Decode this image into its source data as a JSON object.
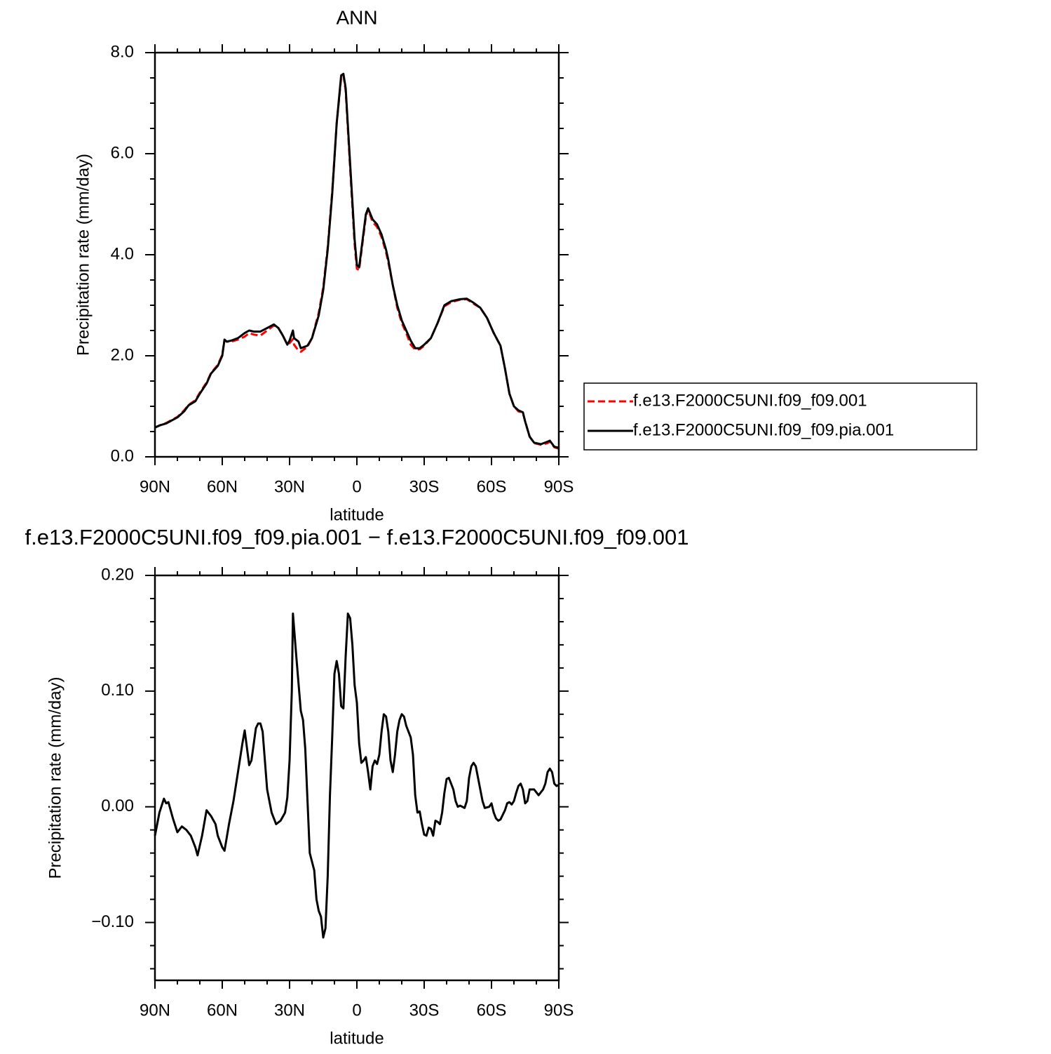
{
  "chart_data": [
    {
      "type": "line",
      "title": "ANN",
      "xlabel": "latitude",
      "ylabel": "Precipitation rate (mm/day)",
      "x": [
        90,
        88,
        85,
        80,
        77,
        75,
        72,
        70,
        67,
        65,
        62,
        60,
        59,
        58,
        56,
        53,
        50,
        48,
        46,
        43,
        40,
        37,
        35,
        33,
        31,
        30,
        28.5,
        28,
        26,
        25,
        22,
        20,
        17,
        15,
        13,
        11,
        9,
        7,
        6,
        5,
        3,
        1,
        0,
        -1,
        -2,
        -4,
        -5,
        -7,
        -9,
        -11,
        -13,
        -14,
        -16,
        -18,
        -20,
        -22,
        -24,
        -26,
        -28,
        -30,
        -33,
        -36,
        -39,
        -42,
        -46,
        -49,
        -52,
        -55,
        -58,
        -61,
        -64,
        -66,
        -68,
        -70,
        -72,
        -74,
        -75,
        -77,
        -79,
        -82,
        -85,
        -86,
        -88,
        -90
      ],
      "series": [
        {
          "name": "f.e13.F2000C5UNI.f09_f09.001",
          "color": "#ff0000",
          "dash": true,
          "values": [
            0.58,
            0.62,
            0.67,
            0.79,
            0.92,
            1.03,
            1.12,
            1.27,
            1.47,
            1.66,
            1.82,
            2.02,
            2.32,
            2.28,
            2.28,
            2.32,
            2.38,
            2.45,
            2.42,
            2.4,
            2.5,
            2.6,
            2.55,
            2.4,
            2.22,
            2.25,
            2.33,
            2.22,
            2.1,
            2.08,
            2.18,
            2.35,
            2.85,
            3.35,
            4.15,
            5.25,
            6.6,
            7.5,
            7.55,
            7.25,
            5.7,
            4.2,
            3.72,
            3.7,
            4.05,
            4.75,
            4.9,
            4.65,
            4.55,
            4.35,
            4.05,
            3.85,
            3.4,
            2.95,
            2.65,
            2.45,
            2.22,
            2.12,
            2.13,
            2.2,
            2.35,
            2.65,
            2.98,
            3.06,
            3.11,
            3.12,
            3.03,
            2.95,
            2.75,
            2.45,
            2.2,
            1.75,
            1.25,
            1.0,
            0.9,
            0.87,
            0.7,
            0.4,
            0.27,
            0.24,
            0.27,
            0.3,
            0.19,
            0.16
          ]
        },
        {
          "name": "f.e13.F2000C5UNI.f09_f09.pia.001",
          "color": "#000000",
          "dash": false,
          "values": [
            0.58,
            0.62,
            0.66,
            0.78,
            0.9,
            1.02,
            1.1,
            1.25,
            1.45,
            1.65,
            1.8,
            2.0,
            2.32,
            2.28,
            2.3,
            2.35,
            2.45,
            2.5,
            2.48,
            2.48,
            2.55,
            2.62,
            2.55,
            2.4,
            2.22,
            2.3,
            2.5,
            2.35,
            2.28,
            2.15,
            2.2,
            2.35,
            2.8,
            3.3,
            4.1,
            5.2,
            6.6,
            7.55,
            7.58,
            7.3,
            5.8,
            4.3,
            3.8,
            3.75,
            4.1,
            4.8,
            4.92,
            4.7,
            4.6,
            4.4,
            4.1,
            3.9,
            3.4,
            3.0,
            2.7,
            2.5,
            2.3,
            2.15,
            2.15,
            2.22,
            2.35,
            2.65,
            3.0,
            3.08,
            3.12,
            3.13,
            3.05,
            2.95,
            2.75,
            2.45,
            2.2,
            1.75,
            1.25,
            1.0,
            0.92,
            0.88,
            0.7,
            0.4,
            0.28,
            0.25,
            0.3,
            0.32,
            0.2,
            0.18
          ]
        }
      ],
      "xlim": [
        90,
        -90
      ],
      "xticks": [
        {
          "value": 90,
          "label": "90N"
        },
        {
          "value": 60,
          "label": "60N"
        },
        {
          "value": 30,
          "label": "30N"
        },
        0,
        {
          "value": -30,
          "label": "30S"
        },
        {
          "value": -60,
          "label": "60S"
        },
        {
          "value": -90,
          "label": "90S"
        }
      ],
      "ylim": [
        0,
        8
      ],
      "yticks": [
        {
          "value": 0,
          "label": "0.0"
        },
        {
          "value": 2,
          "label": "2.0"
        },
        {
          "value": 4,
          "label": "4.0"
        },
        {
          "value": 6,
          "label": "6.0"
        },
        {
          "value": 8,
          "label": "8.0"
        }
      ],
      "legend": "right"
    },
    {
      "type": "line",
      "title": "f.e13.F2000C5UNI.f09_f09.pia.001 − f.e13.F2000C5UNI.f09_f09.001",
      "xlabel": "latitude",
      "ylabel": "Precipitation rate (mm/day)",
      "x": [
        90,
        88,
        86,
        85,
        84,
        82,
        80,
        78,
        76,
        74,
        72,
        71,
        69,
        67,
        65,
        63,
        62,
        60,
        59,
        57,
        55,
        53,
        51,
        50,
        48,
        47,
        45,
        44,
        43,
        42,
        40,
        38,
        36,
        34,
        32,
        31,
        30,
        29,
        28.5,
        27,
        25,
        24,
        23,
        21,
        19,
        18,
        17,
        16,
        15,
        14,
        13,
        12,
        11,
        10,
        9,
        8,
        7,
        6,
        5,
        4,
        3,
        2,
        1,
        0,
        -1,
        -2,
        -3,
        -4,
        -5,
        -6,
        -7,
        -8,
        -9,
        -10,
        -11,
        -12,
        -13,
        -14,
        -15,
        -16,
        -17,
        -18,
        -19,
        -20,
        -21,
        -22,
        -24,
        -25,
        -26,
        -27,
        -28,
        -29,
        -30,
        -31,
        -32,
        -33,
        -34,
        -35,
        -36,
        -37,
        -38,
        -39,
        -40,
        -41,
        -43,
        -44,
        -45,
        -46,
        -48,
        -49,
        -50,
        -51,
        -52,
        -53,
        -55,
        -56,
        -57,
        -59,
        -60,
        -61,
        -62,
        -63,
        -64,
        -66,
        -67,
        -68,
        -69,
        -70,
        -71,
        -72,
        -73,
        -74,
        -75,
        -76,
        -77,
        -79,
        -81,
        -83,
        -84,
        -85,
        -86,
        -87,
        -88,
        -89,
        -90
      ],
      "series": [
        {
          "name": "f.e13.F2000C5UNI.f09_f09.pia.001 − f.e13.F2000C5UNI.f09_f09.001",
          "color": "#000000",
          "dash": false,
          "values": [
            -0.025,
            -0.005,
            0.007,
            0.003,
            0.004,
            -0.01,
            -0.022,
            -0.017,
            -0.02,
            -0.025,
            -0.035,
            -0.042,
            -0.025,
            -0.003,
            -0.008,
            -0.015,
            -0.025,
            -0.035,
            -0.038,
            -0.015,
            0.005,
            0.03,
            0.055,
            0.066,
            0.036,
            0.04,
            0.068,
            0.072,
            0.072,
            0.065,
            0.015,
            -0.005,
            -0.015,
            -0.012,
            -0.005,
            0.008,
            0.04,
            0.1,
            0.167,
            0.13,
            0.083,
            0.075,
            0.05,
            -0.04,
            -0.055,
            -0.08,
            -0.09,
            -0.095,
            -0.113,
            -0.105,
            -0.06,
            0.01,
            0.06,
            0.115,
            0.126,
            0.115,
            0.087,
            0.085,
            0.13,
            0.167,
            0.163,
            0.14,
            0.105,
            0.09,
            0.055,
            0.038,
            0.04,
            0.043,
            0.03,
            0.015,
            0.035,
            0.04,
            0.037,
            0.045,
            0.065,
            0.08,
            0.078,
            0.065,
            0.04,
            0.03,
            0.045,
            0.065,
            0.075,
            0.08,
            0.078,
            0.07,
            0.06,
            0.045,
            0.01,
            -0.005,
            -0.004,
            -0.015,
            -0.024,
            -0.025,
            -0.018,
            -0.019,
            -0.025,
            -0.012,
            -0.013,
            -0.015,
            -0.005,
            0.012,
            0.024,
            0.025,
            0.015,
            0.005,
            0.0,
            0.001,
            -0.001,
            0.005,
            0.025,
            0.035,
            0.038,
            0.035,
            0.015,
            0.005,
            -0.001,
            0.0,
            0.003,
            -0.005,
            -0.01,
            -0.012,
            -0.011,
            -0.003,
            0.003,
            0.004,
            0.002,
            0.005,
            0.012,
            0.018,
            0.02,
            0.015,
            0.003,
            0.005,
            0.015,
            0.015,
            0.01,
            0.015,
            0.02,
            0.03,
            0.033,
            0.03,
            0.02,
            0.018,
            0.019
          ]
        }
      ],
      "xlim": [
        90,
        -90
      ],
      "xticks": [
        {
          "value": 90,
          "label": "90N"
        },
        {
          "value": 60,
          "label": "60N"
        },
        {
          "value": 30,
          "label": "30N"
        },
        0,
        {
          "value": -30,
          "label": "30S"
        },
        {
          "value": -60,
          "label": "60S"
        },
        {
          "value": -90,
          "label": "90S"
        }
      ],
      "ylim": [
        -0.15,
        0.2
      ],
      "yticks": [
        {
          "value": 0.2,
          "label": "0.20"
        },
        {
          "value": 0.1,
          "label": "0.10"
        },
        {
          "value": 0,
          "label": "0.00"
        },
        {
          "value": -0.1,
          "label": "−0.10"
        }
      ]
    }
  ]
}
